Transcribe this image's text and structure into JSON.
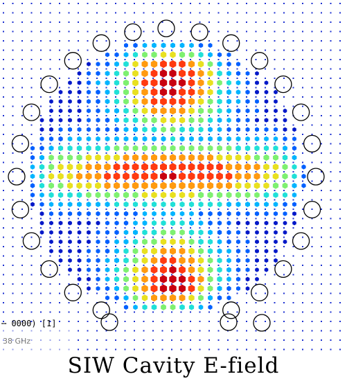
{
  "overlay": {
    "port_info": "⋯ 0000) [1]",
    "frequency": "38 GHz"
  },
  "caption": "SIW Cavity E-field",
  "palette": [
    "#0018c8",
    "#0060ff",
    "#00b4ff",
    "#20e0d8",
    "#7ef070",
    "#e8e020",
    "#ff9a10",
    "#ff3a10",
    "#c80010"
  ],
  "icons": {
    "via": "circle-outline-icon",
    "field_sample": "hexagon-marker-icon"
  }
}
